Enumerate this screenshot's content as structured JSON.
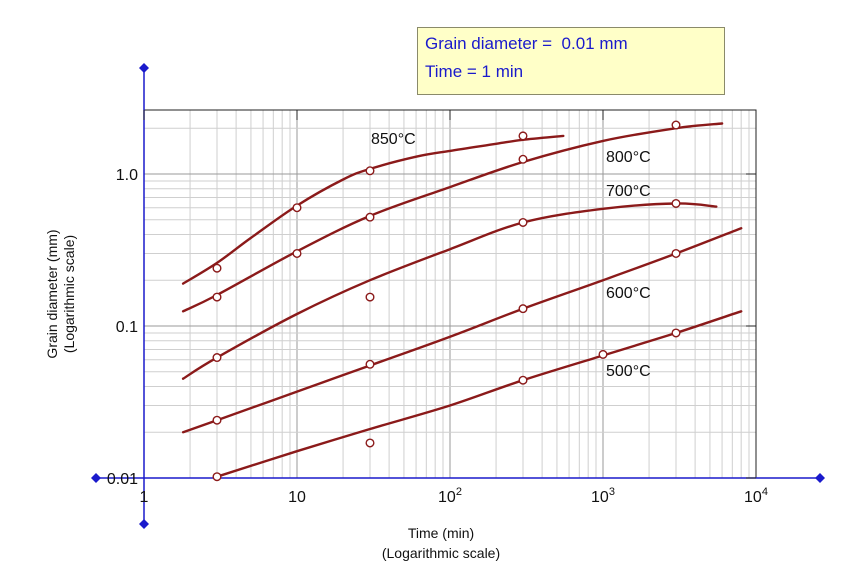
{
  "annotation": {
    "line1": "Grain diameter =  0.01 mm",
    "line2": "Time = 1 min"
  },
  "chart_data": {
    "type": "line",
    "title": "",
    "xlabel": "Time (min)",
    "xlabel_sub": "(Logarithmic scale)",
    "ylabel": "Grain diameter (mm)",
    "ylabel_sub": "(Logarithmic scale)",
    "xscale": "log",
    "yscale": "log",
    "xlim": [
      1,
      10000
    ],
    "ylim": [
      0.01,
      2.6
    ],
    "grid": true,
    "x_ticks": [
      {
        "value": 1,
        "label": "1",
        "sup": ""
      },
      {
        "value": 10,
        "label": "10",
        "sup": ""
      },
      {
        "value": 100,
        "label": "10",
        "sup": "2"
      },
      {
        "value": 1000,
        "label": "10",
        "sup": "3"
      },
      {
        "value": 10000,
        "label": "10",
        "sup": "4"
      }
    ],
    "y_ticks": [
      {
        "value": 0.01,
        "label": "0.01"
      },
      {
        "value": 0.1,
        "label": "0.1"
      },
      {
        "value": 1.0,
        "label": "1.0"
      }
    ],
    "series": [
      {
        "name": "850°C",
        "color": "#8b1a1a",
        "curve": [
          [
            1.8,
            0.19
          ],
          [
            3,
            0.26
          ],
          [
            5,
            0.38
          ],
          [
            10,
            0.62
          ],
          [
            20,
            0.92
          ],
          [
            30,
            1.08
          ],
          [
            60,
            1.3
          ],
          [
            100,
            1.42
          ],
          [
            200,
            1.58
          ],
          [
            300,
            1.68
          ],
          [
            550,
            1.78
          ]
        ],
        "points": [
          [
            3,
            0.24
          ],
          [
            10,
            0.6
          ],
          [
            30,
            1.05
          ],
          [
            300,
            1.78
          ]
        ]
      },
      {
        "name": "800°C",
        "color": "#8b1a1a",
        "curve": [
          [
            1.8,
            0.125
          ],
          [
            3,
            0.16
          ],
          [
            10,
            0.31
          ],
          [
            30,
            0.53
          ],
          [
            100,
            0.82
          ],
          [
            300,
            1.2
          ],
          [
            1000,
            1.65
          ],
          [
            3000,
            2.0
          ],
          [
            6000,
            2.15
          ]
        ],
        "points": [
          [
            3,
            0.155
          ],
          [
            10,
            0.3
          ],
          [
            30,
            0.52
          ],
          [
            300,
            1.25
          ],
          [
            3000,
            2.1
          ]
        ]
      },
      {
        "name": "700°C",
        "color": "#8b1a1a",
        "curve": [
          [
            1.8,
            0.045
          ],
          [
            3,
            0.062
          ],
          [
            10,
            0.12
          ],
          [
            30,
            0.2
          ],
          [
            100,
            0.32
          ],
          [
            300,
            0.48
          ],
          [
            1000,
            0.59
          ],
          [
            3000,
            0.64
          ],
          [
            5500,
            0.61
          ]
        ],
        "points": [
          [
            3,
            0.062
          ],
          [
            30,
            0.155
          ],
          [
            300,
            0.48
          ],
          [
            3000,
            0.64
          ]
        ]
      },
      {
        "name": "600°C",
        "color": "#8b1a1a",
        "curve": [
          [
            1.8,
            0.02
          ],
          [
            3,
            0.024
          ],
          [
            10,
            0.037
          ],
          [
            30,
            0.055
          ],
          [
            100,
            0.085
          ],
          [
            300,
            0.13
          ],
          [
            1000,
            0.2
          ],
          [
            3000,
            0.3
          ],
          [
            8000,
            0.44
          ]
        ],
        "points": [
          [
            3,
            0.024
          ],
          [
            30,
            0.056
          ],
          [
            300,
            0.13
          ],
          [
            3000,
            0.3
          ]
        ]
      },
      {
        "name": "500°C",
        "color": "#8b1a1a",
        "curve": [
          [
            3,
            0.0102
          ],
          [
            10,
            0.015
          ],
          [
            30,
            0.021
          ],
          [
            100,
            0.03
          ],
          [
            300,
            0.044
          ],
          [
            1000,
            0.064
          ],
          [
            3000,
            0.09
          ],
          [
            8000,
            0.125
          ]
        ],
        "points": [
          [
            3,
            0.0102
          ],
          [
            30,
            0.017
          ],
          [
            300,
            0.044
          ],
          [
            1000,
            0.065
          ],
          [
            3000,
            0.09
          ]
        ]
      }
    ]
  }
}
